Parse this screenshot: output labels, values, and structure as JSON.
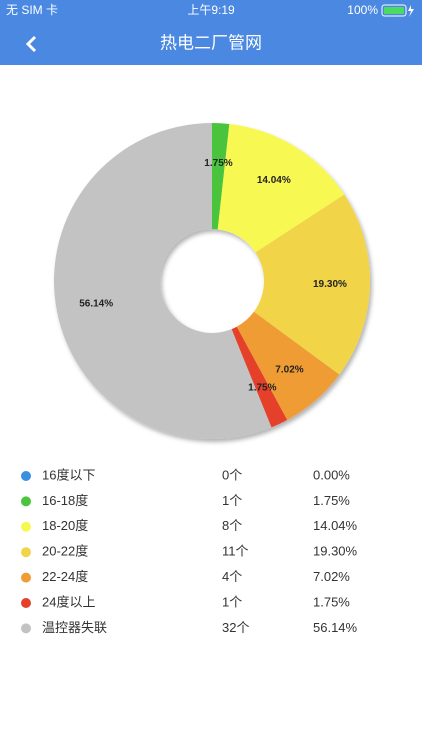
{
  "status_bar": {
    "carrier": "无 SIM 卡",
    "time": "上午9:19",
    "battery": "100%"
  },
  "nav": {
    "title": "热电二厂管网"
  },
  "chart_data": {
    "type": "pie",
    "donut": true,
    "categories": [
      "16度以下",
      "16-18度",
      "18-20度",
      "20-22度",
      "22-24度",
      "24度以上",
      "温控器失联"
    ],
    "values": [
      0,
      1.75,
      14.04,
      19.3,
      7.02,
      1.75,
      56.14
    ],
    "value_labels": [
      "0.00%",
      "1.75%",
      "14.04%",
      "19.30%",
      "7.02%",
      "1.75%",
      "56.14%"
    ],
    "counts": [
      "0个",
      "1个",
      "8个",
      "11个",
      "4个",
      "1个",
      "32个"
    ],
    "colors": [
      "#3b8fe0",
      "#4cc43c",
      "#f8f852",
      "#f2d44a",
      "#f09c35",
      "#e5402a",
      "#c3c3c3"
    ]
  }
}
